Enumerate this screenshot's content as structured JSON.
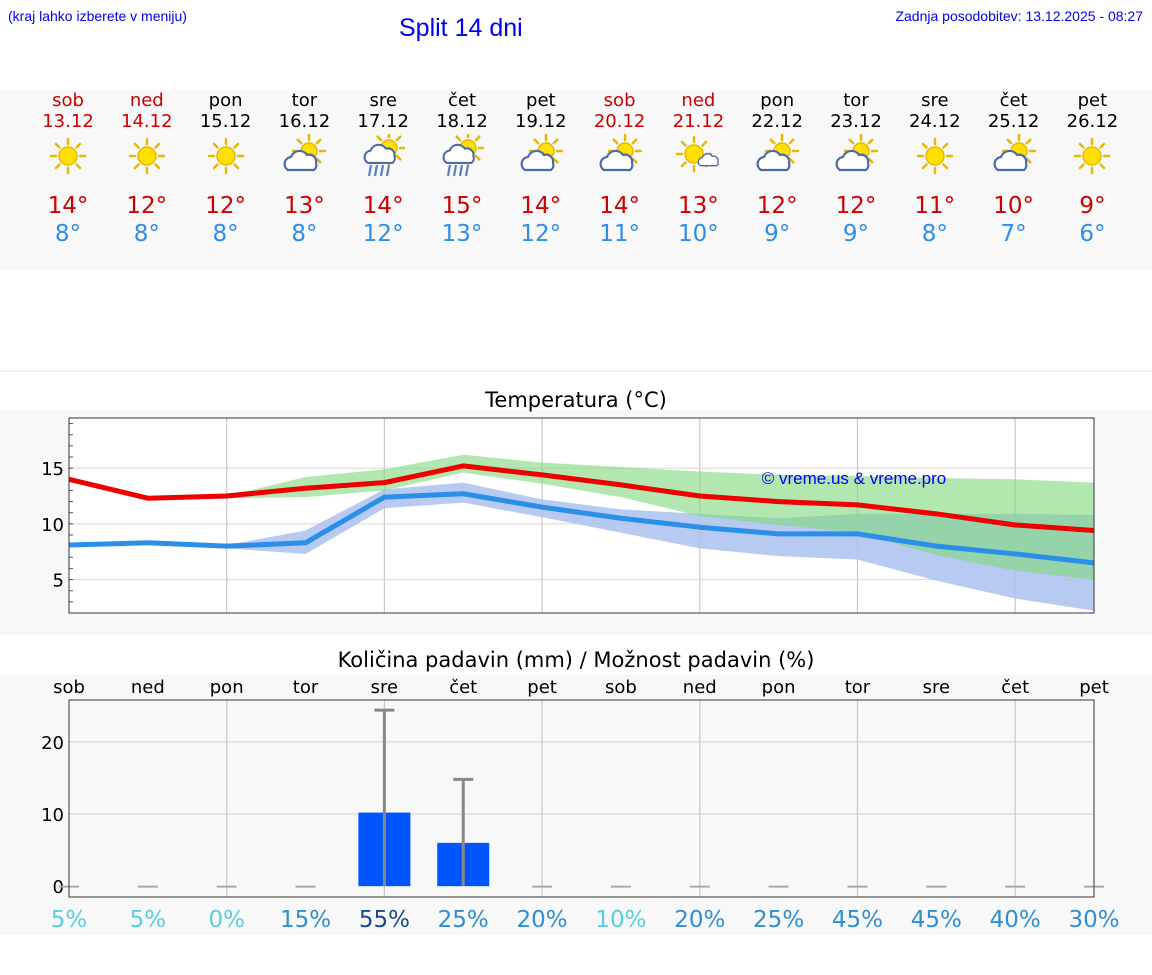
{
  "header": {
    "hint": "(kraj lahko izberete v meniju)",
    "title": "Split 14 dni",
    "updated": "Zadnja posodobitev: 13.12.2025 - 08:27"
  },
  "days": [
    {
      "name": "sob",
      "date": "13.12",
      "weekend": true,
      "icon": "sun-icon",
      "max": "14°",
      "min": "8°"
    },
    {
      "name": "ned",
      "date": "14.12",
      "weekend": true,
      "icon": "sun-icon",
      "max": "12°",
      "min": "8°"
    },
    {
      "name": "pon",
      "date": "15.12",
      "weekend": false,
      "icon": "sun-icon",
      "max": "12°",
      "min": "8°"
    },
    {
      "name": "tor",
      "date": "16.12",
      "weekend": false,
      "icon": "partly-cloudy-icon",
      "max": "13°",
      "min": "8°"
    },
    {
      "name": "sre",
      "date": "17.12",
      "weekend": false,
      "icon": "rain-icon",
      "max": "14°",
      "min": "12°"
    },
    {
      "name": "čet",
      "date": "18.12",
      "weekend": false,
      "icon": "rain-icon",
      "max": "15°",
      "min": "13°"
    },
    {
      "name": "pet",
      "date": "19.12",
      "weekend": false,
      "icon": "partly-cloudy-icon",
      "max": "14°",
      "min": "12°"
    },
    {
      "name": "sob",
      "date": "20.12",
      "weekend": true,
      "icon": "partly-cloudy-icon",
      "max": "14°",
      "min": "11°"
    },
    {
      "name": "ned",
      "date": "21.12",
      "weekend": true,
      "icon": "sun-small-cloud-icon",
      "max": "13°",
      "min": "10°"
    },
    {
      "name": "pon",
      "date": "22.12",
      "weekend": false,
      "icon": "partly-cloudy-icon",
      "max": "12°",
      "min": "9°"
    },
    {
      "name": "tor",
      "date": "23.12",
      "weekend": false,
      "icon": "partly-cloudy-icon",
      "max": "12°",
      "min": "9°"
    },
    {
      "name": "sre",
      "date": "24.12",
      "weekend": false,
      "icon": "sun-icon",
      "max": "11°",
      "min": "8°"
    },
    {
      "name": "čet",
      "date": "25.12",
      "weekend": false,
      "icon": "partly-cloudy-icon",
      "max": "10°",
      "min": "7°"
    },
    {
      "name": "pet",
      "date": "26.12",
      "weekend": false,
      "icon": "sun-icon",
      "max": "9°",
      "min": "6°"
    }
  ],
  "colors": {
    "max_line": "#ee0000",
    "min_line": "#2b8ee8",
    "max_band": "#a8e6a0",
    "min_band": "#a9c1f0",
    "bar": "#0055ff",
    "weekend": "#cc0000"
  },
  "chart_data": [
    {
      "type": "line",
      "title": "Temperatura (°C)",
      "categories": [
        "sob",
        "ned",
        "pon",
        "tor",
        "sre",
        "čet",
        "pet",
        "sob",
        "ned",
        "pon",
        "tor",
        "sre",
        "čet",
        "pet"
      ],
      "ylim": [
        2,
        19.5
      ],
      "yticks": [
        5,
        10,
        15
      ],
      "watermark": "© vreme.us & vreme.pro",
      "series": [
        {
          "name": "max",
          "values": [
            14.0,
            12.3,
            12.5,
            13.2,
            13.7,
            15.2,
            14.4,
            13.5,
            12.5,
            12.0,
            11.7,
            10.9,
            9.9,
            9.4
          ]
        },
        {
          "name": "min",
          "values": [
            8.1,
            8.3,
            8.0,
            8.3,
            12.4,
            12.7,
            11.5,
            10.5,
            9.7,
            9.1,
            9.1,
            8.0,
            7.3,
            6.5
          ]
        },
        {
          "name": "max-range-upper",
          "values": [
            null,
            null,
            12.5,
            14.2,
            14.9,
            16.2,
            15.5,
            15.1,
            14.7,
            14.4,
            14.3,
            14.1,
            14.0,
            13.7
          ]
        },
        {
          "name": "max-range-lower",
          "values": [
            null,
            null,
            12.3,
            12.4,
            13.0,
            14.6,
            13.6,
            12.4,
            10.7,
            9.9,
            9.2,
            7.2,
            5.8,
            5.0
          ]
        },
        {
          "name": "min-range-upper",
          "values": [
            null,
            null,
            8.1,
            9.4,
            13.1,
            13.7,
            12.2,
            11.3,
            10.9,
            10.5,
            10.9,
            10.9,
            10.9,
            10.8
          ]
        },
        {
          "name": "min-range-lower",
          "values": [
            null,
            null,
            7.8,
            7.3,
            11.4,
            11.9,
            10.6,
            9.2,
            7.8,
            7.1,
            6.8,
            4.9,
            3.3,
            2.2
          ]
        }
      ]
    },
    {
      "type": "bar",
      "title": "Količina padavin (mm) / Možnost padavin (%)",
      "categories": [
        "sob",
        "ned",
        "pon",
        "tor",
        "sre",
        "čet",
        "pet",
        "sob",
        "ned",
        "pon",
        "tor",
        "sre",
        "čet",
        "pet"
      ],
      "ylim": [
        -1.5,
        25.8
      ],
      "yticks": [
        0,
        10,
        20
      ],
      "values": [
        0,
        0,
        0,
        0,
        10.2,
        6.0,
        0,
        0,
        0,
        0,
        0,
        0,
        0,
        0
      ],
      "error_max": [
        0,
        0,
        0,
        0,
        24.4,
        14.8,
        0,
        0,
        0,
        0,
        0,
        0,
        0,
        0
      ],
      "probability": [
        "5%",
        "5%",
        "0%",
        "15%",
        "55%",
        "25%",
        "20%",
        "10%",
        "20%",
        "25%",
        "45%",
        "45%",
        "40%",
        "30%"
      ]
    }
  ]
}
